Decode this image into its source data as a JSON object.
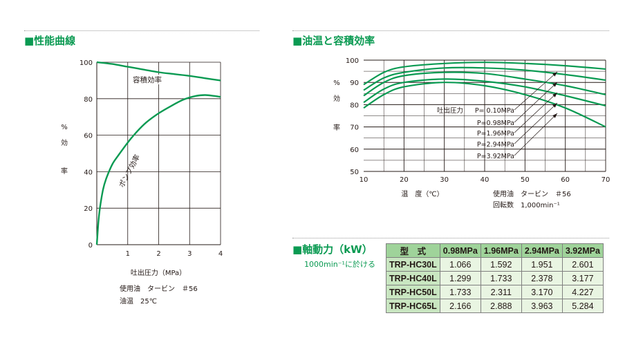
{
  "sections": {
    "performance": "■性能曲線",
    "oil_temp": "■油温と容積効率",
    "power": "■軸動力（kW）",
    "power_sub": "1000min⁻¹に於ける"
  },
  "chart_data": [
    {
      "type": "line",
      "xlabel": "吐出圧力（MPa）",
      "ylabel": [
        "%",
        "効",
        "率"
      ],
      "xlim": [
        0,
        4
      ],
      "ylim": [
        0,
        100
      ],
      "xticks": [
        "1",
        "2",
        "3",
        "4"
      ],
      "yticks": [
        "0",
        "20",
        "40",
        "60",
        "80",
        "100"
      ],
      "grid": true,
      "series": [
        {
          "name": "容積効率",
          "x": [
            0,
            0.5,
            1,
            1.5,
            2,
            2.5,
            3,
            3.5,
            4
          ],
          "y": [
            100,
            99,
            97.5,
            96,
            94.5,
            93.5,
            92.5,
            91.2,
            90
          ]
        },
        {
          "name": "ポンプ効率",
          "x": [
            0,
            0.05,
            0.1,
            0.2,
            0.3,
            0.5,
            0.7,
            1.0,
            1.3,
            1.6,
            2.0,
            2.4,
            2.8,
            3.2,
            3.5,
            3.8,
            4.0
          ],
          "y": [
            0,
            12,
            20,
            30,
            36,
            44,
            49,
            56,
            62,
            67,
            72,
            76,
            79.5,
            81.5,
            82,
            81.5,
            81
          ]
        }
      ],
      "notes": [
        "使用油　タービン　＃56",
        "油温　25℃"
      ]
    },
    {
      "type": "line",
      "xlabel": "温　度（℃）",
      "ylabel": [
        "%",
        "効",
        "率"
      ],
      "xlim": [
        10,
        70
      ],
      "ylim": [
        50,
        100
      ],
      "xticks": [
        "10",
        "20",
        "30",
        "40",
        "50",
        "60",
        "70"
      ],
      "yticks": [
        "50",
        "60",
        "70",
        "80",
        "90",
        "100"
      ],
      "grid": true,
      "legend_title": "吐出圧力",
      "series": [
        {
          "name": "P= 0.10MPa",
          "x": [
            10,
            15,
            20,
            30,
            40,
            50,
            60,
            70
          ],
          "y": [
            89,
            94.5,
            97,
            98.5,
            99,
            98.5,
            97.5,
            96
          ]
        },
        {
          "name": "P=0.98MPa",
          "x": [
            10,
            15,
            20,
            30,
            40,
            50,
            60,
            70
          ],
          "y": [
            86.5,
            92,
            94.5,
            96.5,
            96.5,
            95.5,
            93.5,
            91
          ]
        },
        {
          "name": "P=1.96MPa",
          "x": [
            10,
            15,
            20,
            30,
            40,
            50,
            60,
            70
          ],
          "y": [
            84,
            90,
            93,
            94.5,
            94,
            91.5,
            88.5,
            84.5
          ]
        },
        {
          "name": "P=2.94MPa",
          "x": [
            10,
            15,
            20,
            30,
            40,
            50,
            60,
            70
          ],
          "y": [
            81,
            87,
            90,
            91.5,
            90.5,
            88,
            84,
            79.5
          ]
        },
        {
          "name": "P=3.92MPa",
          "x": [
            10,
            15,
            20,
            30,
            40,
            50,
            60,
            70
          ],
          "y": [
            78.5,
            84.5,
            88,
            90,
            88.5,
            84.5,
            78.5,
            70
          ]
        }
      ],
      "notes": [
        "使用油　タービン　＃56",
        "回転数　1,000min⁻¹"
      ]
    },
    {
      "type": "table",
      "columns": [
        "型　式",
        "0.98MPa",
        "1.96MPa",
        "2.94MPa",
        "3.92MPa"
      ],
      "rows": [
        [
          "TRP-HC30L",
          "1.066",
          "1.592",
          "1.951",
          "2.601"
        ],
        [
          "TRP-HC40L",
          "1.299",
          "1.733",
          "2.378",
          "3.177"
        ],
        [
          "TRP-HC50L",
          "1.733",
          "2.311",
          "3.170",
          "4.227"
        ],
        [
          "TRP-HC65L",
          "2.166",
          "2.888",
          "3.963",
          "5.284"
        ]
      ]
    }
  ],
  "colors": {
    "curve": "#0a9a52",
    "heading": "#0a9a52",
    "table_header": "#9fd39a",
    "table_model": "#c9e6c1",
    "table_cell": "#e9f5e2"
  }
}
